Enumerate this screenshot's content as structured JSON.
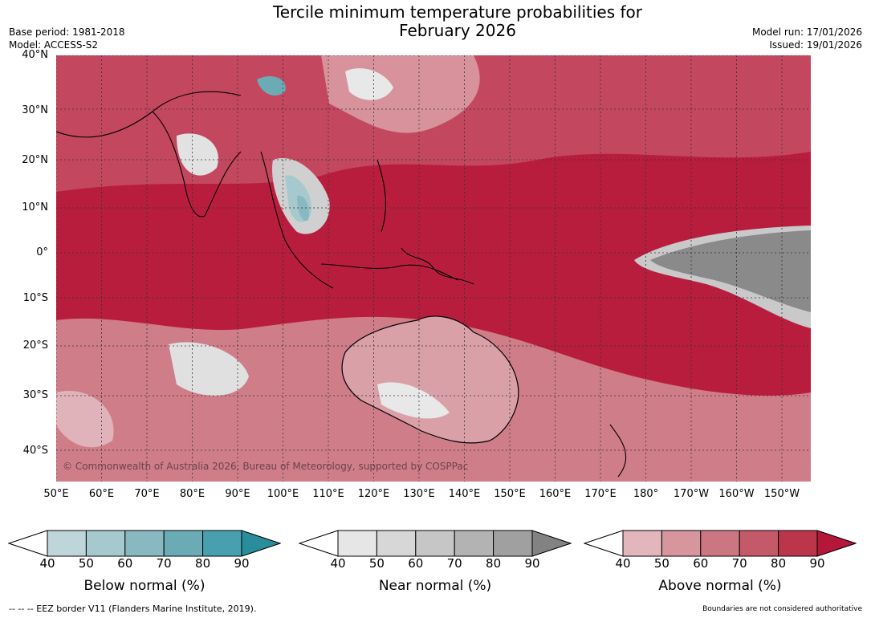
{
  "title_line1": "Tercile minimum temperature probabilities for",
  "title_line2": "February 2026",
  "base_period": "Base period: 1981-2018",
  "model": "Model: ACCESS-S2",
  "model_run": "Model run: 17/01/2026",
  "issued": "Issued: 19/01/2026",
  "copyright": "© Commonwealth of Australia 2026, Bureau of Meteorology, supported by COSPPac",
  "lat_labels": [
    "40°N",
    "30°N",
    "20°N",
    "10°N",
    "0°",
    "10°S",
    "20°S",
    "30°S",
    "40°S"
  ],
  "lon_labels": [
    "50°E",
    "60°E",
    "70°E",
    "80°E",
    "90°E",
    "100°E",
    "110°E",
    "120°E",
    "130°E",
    "140°E",
    "150°E",
    "160°E",
    "170°E",
    "180°",
    "170°W",
    "160°W",
    "150°W"
  ],
  "colorbars": [
    {
      "name": "below",
      "label": "Below normal (%)",
      "ticks": [
        "40",
        "50",
        "60",
        "70",
        "80",
        "90"
      ],
      "colors": [
        "#ffffff",
        "#bed5da",
        "#a6c9ce",
        "#88b9c1",
        "#6aabb6",
        "#48a0ae",
        "#2a8d9c"
      ]
    },
    {
      "name": "near",
      "label": "Near normal (%)",
      "ticks": [
        "40",
        "50",
        "60",
        "70",
        "80",
        "90"
      ],
      "colors": [
        "#ffffff",
        "#e6e6e6",
        "#d7d7d7",
        "#c6c6c6",
        "#b3b3b3",
        "#a0a0a0",
        "#828282"
      ]
    },
    {
      "name": "above",
      "label": "Above normal (%)",
      "ticks": [
        "40",
        "50",
        "60",
        "70",
        "80",
        "90"
      ],
      "colors": [
        "#ffffff",
        "#e2b6bc",
        "#d7959e",
        "#cc7682",
        "#c45a69",
        "#bb354b",
        "#b5173a"
      ]
    }
  ],
  "footer_left": "--  --  -- EEZ border V11 (Flanders Marine Institute, 2019).",
  "footer_right": "Boundaries are not considered authoritative"
}
